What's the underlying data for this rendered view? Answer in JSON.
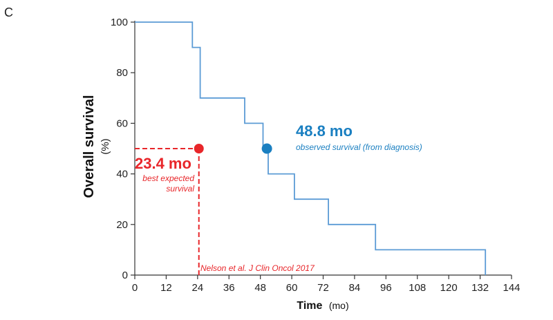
{
  "panel_label": "C",
  "colors": {
    "survival_line": "#5b9bd5",
    "observed": "#1a7fc1",
    "expected": "#e8262a",
    "axis": "#333333"
  },
  "chart_data": {
    "type": "line",
    "step": true,
    "title": "",
    "ylabel": "Overall survival",
    "ylabel_unit": "(%)",
    "xlabel": "Time",
    "xlabel_unit": "(mo)",
    "xlim": [
      0,
      144
    ],
    "ylim": [
      0,
      100
    ],
    "x_ticks": [
      0,
      12,
      24,
      36,
      48,
      60,
      72,
      84,
      96,
      108,
      120,
      132,
      144
    ],
    "y_ticks": [
      0,
      20,
      40,
      60,
      80,
      100
    ],
    "grid": false,
    "series": [
      {
        "name": "Overall survival",
        "x": [
          0,
          22,
          22,
          25,
          25,
          42,
          42,
          49,
          49,
          51,
          51,
          61,
          61,
          74,
          74,
          92,
          92,
          134,
          134
        ],
        "y": [
          100,
          100,
          90,
          90,
          70,
          70,
          60,
          60,
          50,
          50,
          40,
          40,
          30,
          30,
          20,
          20,
          10,
          10,
          0
        ]
      }
    ],
    "annotations": {
      "observed": {
        "x": 50.5,
        "y": 50,
        "value": "48.8 mo",
        "label": "observed survival (from diagnosis)"
      },
      "expected": {
        "x": 24.5,
        "y": 50,
        "value": "23.4 mo",
        "label_line1": "best expected",
        "label_line2": "survival"
      },
      "citation": "Nelson et al. J Clin Oncol 2017"
    }
  }
}
